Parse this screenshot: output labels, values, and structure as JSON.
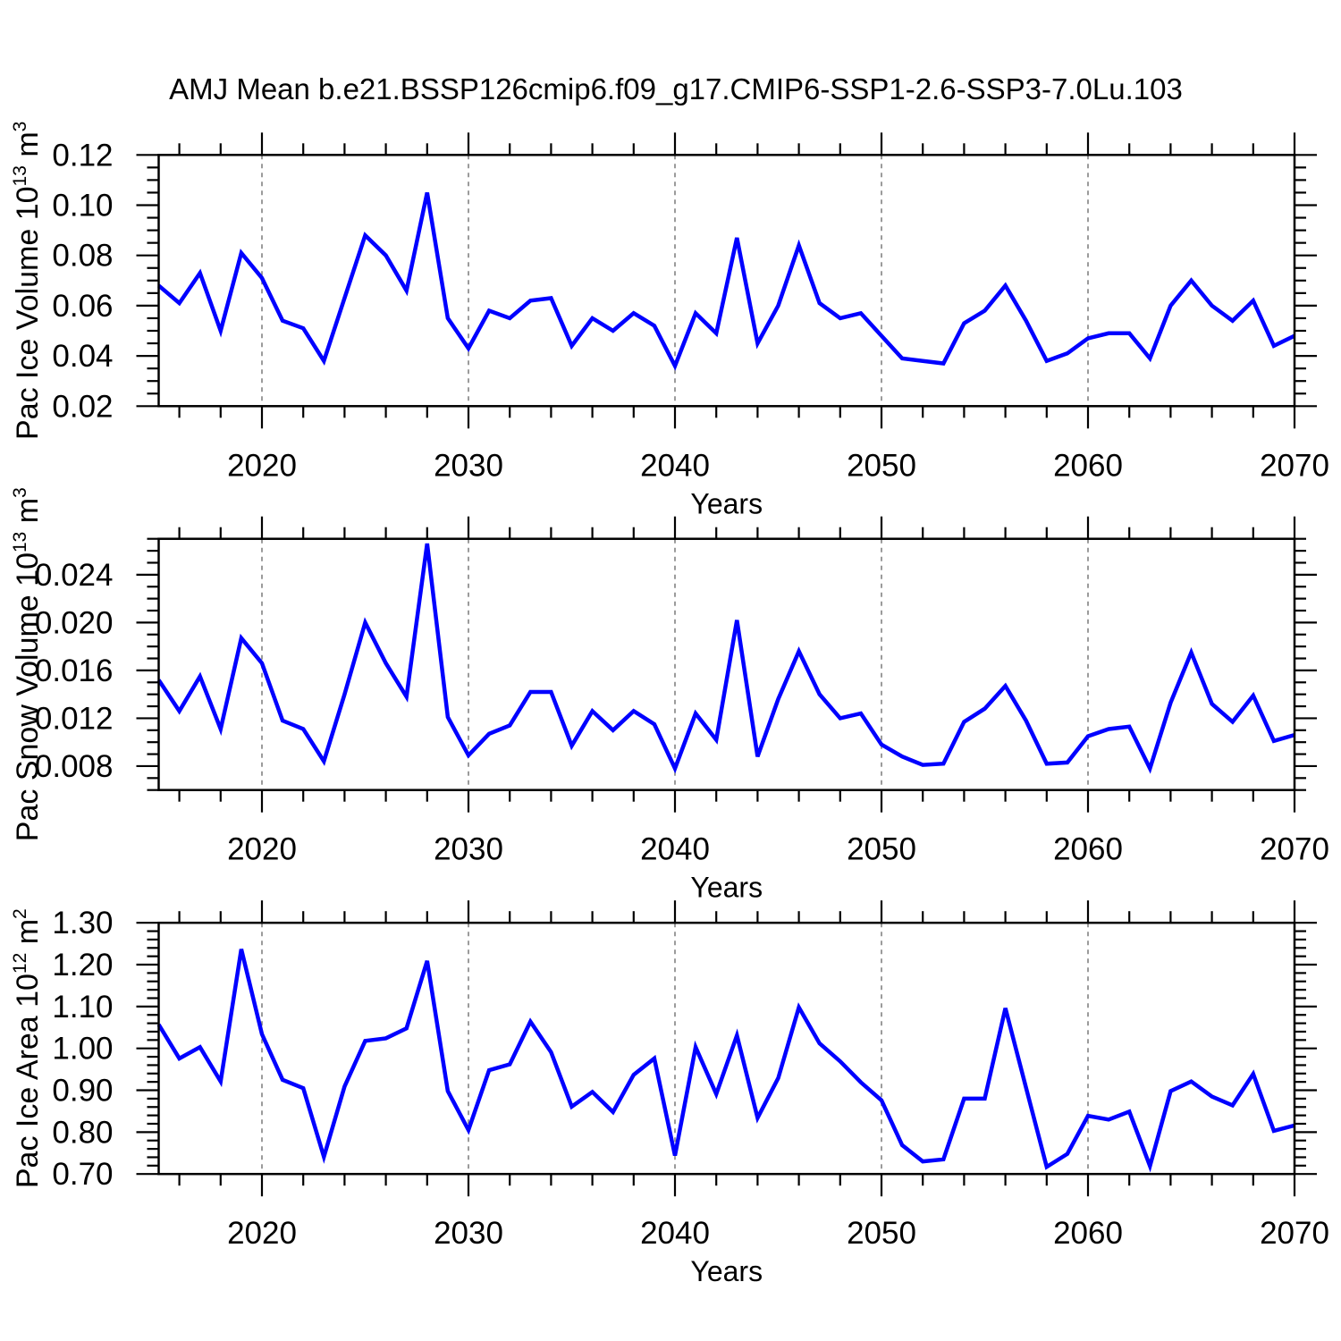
{
  "title": "AMJ Mean b.e21.BSSP126cmip6.f09_g17.CMIP6-SSP1-2.6-SSP3-7.0Lu.103",
  "colors": {
    "line": "#0000ff",
    "grid": "#7a7a7a",
    "frame": "#000000"
  },
  "chart_data": [
    {
      "type": "line",
      "name": "pac-ice-volume",
      "ylabel_prefix": "Pac Ice Volume 10",
      "ylabel_sup1": "13",
      "ylabel_mid": " m",
      "ylabel_sup2": "3",
      "xlabel": "Years",
      "xlim": [
        2015,
        2070
      ],
      "ylim": [
        0.02,
        0.12
      ],
      "x_start": 2015,
      "x_step": 1,
      "x_tick_values": [
        2020,
        2030,
        2040,
        2050,
        2060,
        2070
      ],
      "x_tick_labels": [
        "2020",
        "2030",
        "2040",
        "2050",
        "2060",
        "2070"
      ],
      "x_minor_step": 2,
      "grid_years": [
        2020,
        2030,
        2040,
        2050,
        2060
      ],
      "y_tick_values": [
        0.02,
        0.04,
        0.06,
        0.08,
        0.1,
        0.12
      ],
      "y_tick_labels": [
        "0.02",
        "0.04",
        "0.06",
        "0.08",
        "0.10",
        "0.12"
      ],
      "y_minor_step": 0.005,
      "values": [
        0.068,
        0.061,
        0.073,
        0.05,
        0.081,
        0.071,
        0.054,
        0.051,
        0.038,
        0.063,
        0.088,
        0.08,
        0.066,
        0.105,
        0.055,
        0.043,
        0.058,
        0.055,
        0.062,
        0.063,
        0.044,
        0.055,
        0.05,
        0.057,
        0.052,
        0.036,
        0.057,
        0.049,
        0.087,
        0.045,
        0.06,
        0.084,
        0.061,
        0.055,
        0.057,
        0.048,
        0.039,
        0.038,
        0.037,
        0.053,
        0.058,
        0.068,
        0.054,
        0.038,
        0.041,
        0.047,
        0.049,
        0.049,
        0.039,
        0.06,
        0.07,
        0.06,
        0.054,
        0.062,
        0.044,
        0.048
      ]
    },
    {
      "type": "line",
      "name": "pac-snow-volume",
      "ylabel_prefix": "Pac Snow Volume 10",
      "ylabel_sup1": "13",
      "ylabel_mid": " m",
      "ylabel_sup2": "3",
      "xlabel": "Years",
      "xlim": [
        2015,
        2070
      ],
      "ylim": [
        0.006,
        0.027
      ],
      "x_start": 2015,
      "x_step": 1,
      "x_tick_values": [
        2020,
        2030,
        2040,
        2050,
        2060,
        2070
      ],
      "x_tick_labels": [
        "2020",
        "2030",
        "2040",
        "2050",
        "2060",
        "2070"
      ],
      "x_minor_step": 2,
      "grid_years": [
        2020,
        2030,
        2040,
        2050,
        2060
      ],
      "y_tick_values": [
        0.008,
        0.012,
        0.016,
        0.02,
        0.024
      ],
      "y_tick_labels": [
        "0.008",
        "0.012",
        "0.016",
        "0.020",
        "0.024"
      ],
      "y_minor_step": 0.001,
      "values": [
        0.0152,
        0.0126,
        0.0155,
        0.0111,
        0.0187,
        0.0166,
        0.0118,
        0.0111,
        0.0084,
        0.014,
        0.02,
        0.0166,
        0.0138,
        0.0266,
        0.0121,
        0.0089,
        0.0107,
        0.0114,
        0.0142,
        0.0142,
        0.0097,
        0.0126,
        0.011,
        0.0126,
        0.0115,
        0.0078,
        0.0124,
        0.0102,
        0.0202,
        0.0088,
        0.0136,
        0.0176,
        0.014,
        0.012,
        0.0124,
        0.0098,
        0.0088,
        0.0081,
        0.0082,
        0.0117,
        0.0128,
        0.0147,
        0.0118,
        0.0082,
        0.0083,
        0.0105,
        0.0111,
        0.0113,
        0.0078,
        0.0133,
        0.0175,
        0.0132,
        0.0117,
        0.0139,
        0.0101,
        0.0106
      ]
    },
    {
      "type": "line",
      "name": "pac-ice-area",
      "ylabel_prefix": "Pac Ice Area 10",
      "ylabel_sup1": "12",
      "ylabel_mid": " m",
      "ylabel_sup2": "2",
      "xlabel": "Years",
      "xlim": [
        2015,
        2070
      ],
      "ylim": [
        0.7,
        1.3
      ],
      "x_start": 2015,
      "x_step": 1,
      "x_tick_values": [
        2020,
        2030,
        2040,
        2050,
        2060,
        2070
      ],
      "x_tick_labels": [
        "2020",
        "2030",
        "2040",
        "2050",
        "2060",
        "2070"
      ],
      "x_minor_step": 2,
      "grid_years": [
        2020,
        2030,
        2040,
        2050,
        2060
      ],
      "y_tick_values": [
        0.7,
        0.8,
        0.9,
        1.0,
        1.1,
        1.2,
        1.3
      ],
      "y_tick_labels": [
        "0.70",
        "0.80",
        "0.90",
        "1.00",
        "1.10",
        "1.20",
        "1.30"
      ],
      "y_minor_step": 0.02,
      "values": [
        1.057,
        0.976,
        1.003,
        0.921,
        1.237,
        1.034,
        0.925,
        0.905,
        0.741,
        0.909,
        1.018,
        1.024,
        1.048,
        1.209,
        0.898,
        0.805,
        0.948,
        0.962,
        1.064,
        0.991,
        0.861,
        0.896,
        0.848,
        0.937,
        0.976,
        0.744,
        1.003,
        0.891,
        1.031,
        0.834,
        0.929,
        1.098,
        1.012,
        0.969,
        0.919,
        0.876,
        0.769,
        0.73,
        0.735,
        0.88,
        0.88,
        1.096,
        0.906,
        0.717,
        0.748,
        0.839,
        0.83,
        0.849,
        0.719,
        0.898,
        0.921,
        0.885,
        0.864,
        0.939,
        0.803,
        0.816
      ]
    }
  ]
}
